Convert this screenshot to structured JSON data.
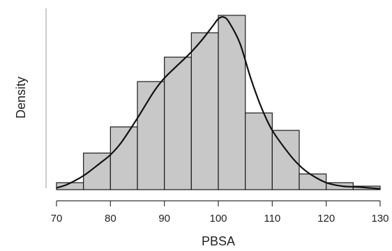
{
  "chart_data": {
    "type": "bar",
    "subtype": "histogram-with-density-curve",
    "xlabel": "PBSA",
    "ylabel": "Density",
    "xlim": [
      70,
      130
    ],
    "ylim": [
      0,
      1
    ],
    "y_units": "relative density (y axis unlabeled)",
    "x_ticks": [
      70,
      80,
      90,
      100,
      110,
      120,
      130
    ],
    "bin_width": 5,
    "bins": [
      {
        "start": 70,
        "end": 75,
        "value": 0.04
      },
      {
        "start": 75,
        "end": 80,
        "value": 0.21
      },
      {
        "start": 80,
        "end": 85,
        "value": 0.36
      },
      {
        "start": 85,
        "end": 90,
        "value": 0.62
      },
      {
        "start": 90,
        "end": 95,
        "value": 0.76
      },
      {
        "start": 95,
        "end": 100,
        "value": 0.9
      },
      {
        "start": 100,
        "end": 105,
        "value": 1.0
      },
      {
        "start": 105,
        "end": 110,
        "value": 0.44
      },
      {
        "start": 110,
        "end": 115,
        "value": 0.34
      },
      {
        "start": 115,
        "end": 120,
        "value": 0.09
      },
      {
        "start": 120,
        "end": 125,
        "value": 0.04
      },
      {
        "start": 125,
        "end": 130,
        "value": 0.02
      }
    ],
    "density_curve": {
      "x": [
        70,
        72,
        75,
        78,
        80,
        82,
        85,
        88,
        90,
        93,
        95,
        97,
        99,
        100,
        101,
        102,
        104,
        106,
        108,
        110,
        113,
        115,
        117,
        120,
        123,
        126,
        128,
        130
      ],
      "y": [
        0.01,
        0.03,
        0.08,
        0.15,
        0.2,
        0.27,
        0.41,
        0.56,
        0.64,
        0.73,
        0.79,
        0.86,
        0.94,
        0.98,
        0.99,
        0.96,
        0.84,
        0.64,
        0.47,
        0.34,
        0.21,
        0.14,
        0.09,
        0.04,
        0.02,
        0.015,
        0.01,
        0.005
      ]
    },
    "grid": false,
    "colors": {
      "bar_fill": "#c8c8c8",
      "bar_stroke": "#1a1a1a",
      "curve": "#111111",
      "axis": "#333333",
      "y_axis_line": "#bbbbbb"
    }
  }
}
